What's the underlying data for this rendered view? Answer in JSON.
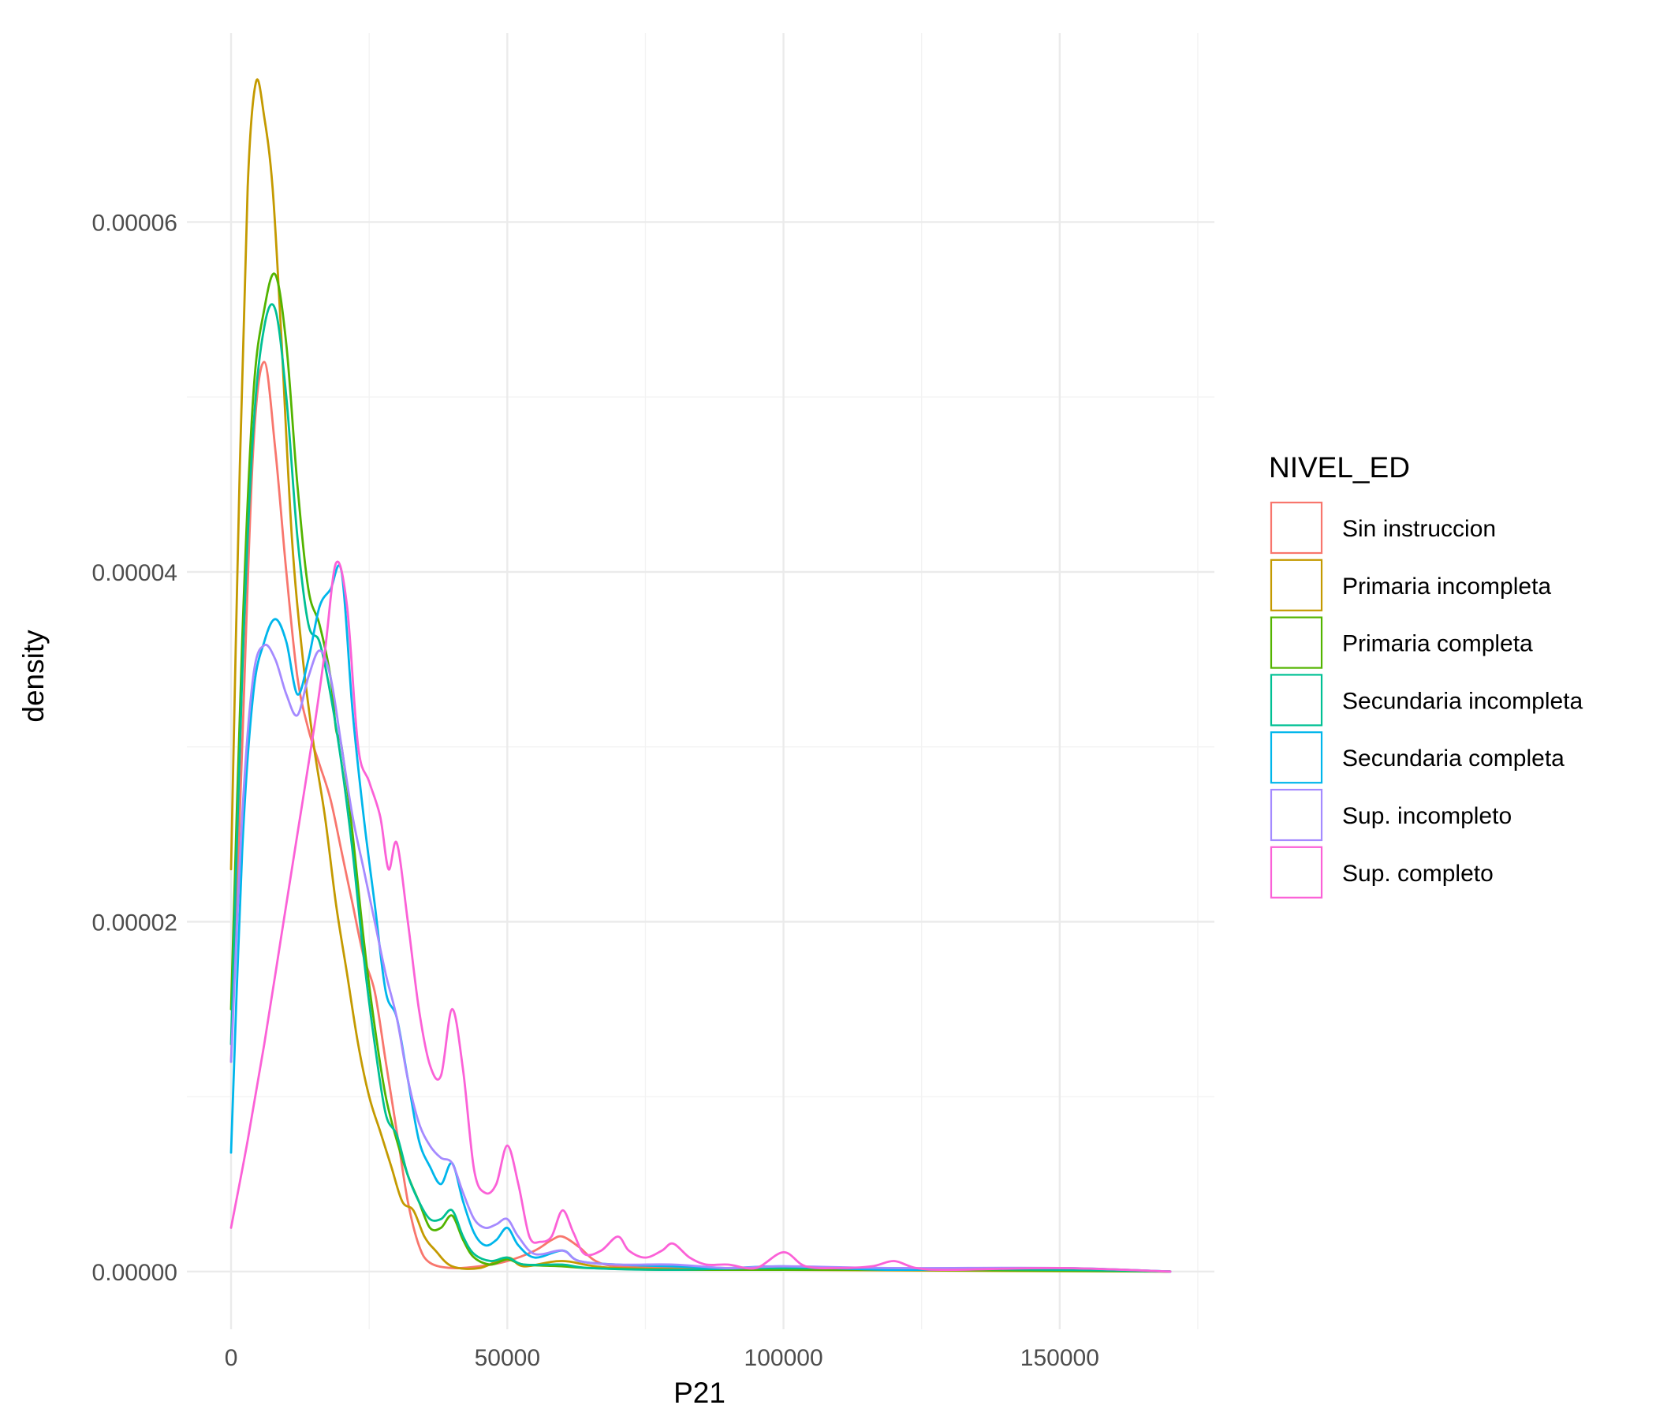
{
  "chart_data": {
    "type": "line",
    "subtype": "density",
    "xlabel": "P21",
    "ylabel": "density",
    "xlim": [
      -8000,
      178000
    ],
    "ylim": [
      -3.3e-06,
      7.08e-05
    ],
    "x_ticks": [
      0,
      50000,
      100000,
      150000
    ],
    "x_tick_labels": [
      "0",
      "50000",
      "100000",
      "150000"
    ],
    "x_minor_ticks": [
      25000,
      75000,
      125000,
      175000
    ],
    "y_ticks": [
      0,
      2e-05,
      4e-05,
      6e-05
    ],
    "y_tick_labels": [
      "0.00000",
      "0.00002",
      "0.00004",
      "0.00006"
    ],
    "y_minor_ticks": [
      1e-05,
      3e-05,
      5e-05
    ],
    "grid": true,
    "legend": {
      "title": "NIVEL_ED",
      "position": "right"
    },
    "series": [
      {
        "name": "Sin instruccion",
        "color": "#F8766D",
        "points": [
          [
            0,
            1.2e-05
          ],
          [
            2000,
            3e-05
          ],
          [
            4000,
            4.7e-05
          ],
          [
            6000,
            5.2e-05
          ],
          [
            8000,
            4.7e-05
          ],
          [
            10000,
            4e-05
          ],
          [
            12000,
            3.4e-05
          ],
          [
            14000,
            3.1e-05
          ],
          [
            16000,
            2.9e-05
          ],
          [
            18000,
            2.7e-05
          ],
          [
            20000,
            2.4e-05
          ],
          [
            22000,
            2.1e-05
          ],
          [
            24000,
            1.8e-05
          ],
          [
            26000,
            1.6e-05
          ],
          [
            28000,
            1.2e-05
          ],
          [
            30000,
            8e-06
          ],
          [
            32000,
            4e-06
          ],
          [
            34000,
            1.5e-06
          ],
          [
            36000,
            5e-07
          ],
          [
            40000,
            2e-07
          ],
          [
            45000,
            3e-07
          ],
          [
            50000,
            6e-07
          ],
          [
            55000,
            1.2e-06
          ],
          [
            58000,
            1.8e-06
          ],
          [
            60000,
            2e-06
          ],
          [
            63000,
            1.4e-06
          ],
          [
            66000,
            6e-07
          ],
          [
            70000,
            3e-07
          ],
          [
            80000,
            2e-07
          ],
          [
            100000,
            2e-07
          ],
          [
            120000,
            1e-07
          ],
          [
            150000,
            1e-07
          ],
          [
            170000,
            0.0
          ]
        ]
      },
      {
        "name": "Primaria incompleta",
        "color": "#C49A00",
        "points": [
          [
            0,
            2.3e-05
          ],
          [
            1500,
            4.5e-05
          ],
          [
            3000,
            6.2e-05
          ],
          [
            4500,
            6.8e-05
          ],
          [
            6000,
            6.6e-05
          ],
          [
            7500,
            6.2e-05
          ],
          [
            9000,
            5.4e-05
          ],
          [
            11000,
            4.2e-05
          ],
          [
            13000,
            3.5e-05
          ],
          [
            15000,
            3e-05
          ],
          [
            17000,
            2.6e-05
          ],
          [
            19000,
            2.1e-05
          ],
          [
            21000,
            1.7e-05
          ],
          [
            23000,
            1.3e-05
          ],
          [
            25000,
            1e-05
          ],
          [
            27000,
            8e-06
          ],
          [
            29000,
            6e-06
          ],
          [
            31000,
            4e-06
          ],
          [
            33000,
            3.5e-06
          ],
          [
            35000,
            2e-06
          ],
          [
            37000,
            1.2e-06
          ],
          [
            40000,
            3e-07
          ],
          [
            45000,
            2e-07
          ],
          [
            50000,
            8e-07
          ],
          [
            53000,
            3e-07
          ],
          [
            60000,
            6e-07
          ],
          [
            70000,
            2e-07
          ],
          [
            100000,
            1e-07
          ],
          [
            170000,
            0.0
          ]
        ]
      },
      {
        "name": "Primaria completa",
        "color": "#53B400",
        "points": [
          [
            0,
            1.5e-05
          ],
          [
            2000,
            3.6e-05
          ],
          [
            4000,
            5e-05
          ],
          [
            6000,
            5.5e-05
          ],
          [
            8000,
            5.7e-05
          ],
          [
            10000,
            5.3e-05
          ],
          [
            12000,
            4.5e-05
          ],
          [
            14000,
            3.9e-05
          ],
          [
            16000,
            3.7e-05
          ],
          [
            18000,
            3.4e-05
          ],
          [
            19000,
            3.1e-05
          ],
          [
            20000,
            3e-05
          ],
          [
            22000,
            2.5e-05
          ],
          [
            24000,
            1.9e-05
          ],
          [
            26000,
            1.4e-05
          ],
          [
            28000,
            1e-05
          ],
          [
            30000,
            7.5e-06
          ],
          [
            32000,
            5.5e-06
          ],
          [
            34000,
            4e-06
          ],
          [
            36000,
            2.5e-06
          ],
          [
            38000,
            2.5e-06
          ],
          [
            40000,
            3.2e-06
          ],
          [
            42000,
            1.8e-06
          ],
          [
            44000,
            8e-07
          ],
          [
            47000,
            4e-07
          ],
          [
            50000,
            7e-07
          ],
          [
            53000,
            4e-07
          ],
          [
            60000,
            3e-07
          ],
          [
            65000,
            2e-07
          ],
          [
            80000,
            1e-07
          ],
          [
            120000,
            1e-07
          ],
          [
            170000,
            0.0
          ]
        ]
      },
      {
        "name": "Secundaria incompleta",
        "color": "#00C094",
        "points": [
          [
            0,
            1.3e-05
          ],
          [
            2000,
            3.4e-05
          ],
          [
            4000,
            4.8e-05
          ],
          [
            6000,
            5.4e-05
          ],
          [
            8000,
            5.5e-05
          ],
          [
            10000,
            5e-05
          ],
          [
            12000,
            4.2e-05
          ],
          [
            14000,
            3.7e-05
          ],
          [
            16000,
            3.6e-05
          ],
          [
            18000,
            3.3e-05
          ],
          [
            20000,
            2.9e-05
          ],
          [
            22000,
            2.4e-05
          ],
          [
            24000,
            1.8e-05
          ],
          [
            26000,
            1.3e-05
          ],
          [
            28000,
            9e-06
          ],
          [
            30000,
            7.8e-06
          ],
          [
            32000,
            5.5e-06
          ],
          [
            34000,
            4e-06
          ],
          [
            36000,
            3e-06
          ],
          [
            38000,
            3e-06
          ],
          [
            40000,
            3.5e-06
          ],
          [
            42000,
            2e-06
          ],
          [
            44000,
            1e-06
          ],
          [
            47000,
            6e-07
          ],
          [
            50000,
            8e-07
          ],
          [
            53000,
            4e-07
          ],
          [
            60000,
            4e-07
          ],
          [
            65000,
            2e-07
          ],
          [
            80000,
            1e-07
          ],
          [
            100000,
            2e-07
          ],
          [
            150000,
            1e-07
          ],
          [
            170000,
            0.0
          ]
        ]
      },
      {
        "name": "Secundaria completa",
        "color": "#00B6EB",
        "points": [
          [
            0,
            6.8e-06
          ],
          [
            2000,
            2.4e-05
          ],
          [
            4000,
            3.3e-05
          ],
          [
            6000,
            3.6e-05
          ],
          [
            8000,
            3.73e-05
          ],
          [
            10000,
            3.6e-05
          ],
          [
            12000,
            3.3e-05
          ],
          [
            14000,
            3.5e-05
          ],
          [
            16000,
            3.8e-05
          ],
          [
            18000,
            3.9e-05
          ],
          [
            20000,
            4e-05
          ],
          [
            22000,
            3.2e-05
          ],
          [
            24000,
            2.6e-05
          ],
          [
            26000,
            2.1e-05
          ],
          [
            28000,
            1.6e-05
          ],
          [
            30000,
            1.45e-05
          ],
          [
            32000,
            1.1e-05
          ],
          [
            34000,
            7.5e-06
          ],
          [
            36000,
            6e-06
          ],
          [
            38000,
            5e-06
          ],
          [
            40000,
            6.2e-06
          ],
          [
            42000,
            4e-06
          ],
          [
            44000,
            2.2e-06
          ],
          [
            46000,
            1.5e-06
          ],
          [
            48000,
            1.8e-06
          ],
          [
            50000,
            2.5e-06
          ],
          [
            52000,
            1.5e-06
          ],
          [
            55000,
            8e-07
          ],
          [
            60000,
            1.2e-06
          ],
          [
            63000,
            6e-07
          ],
          [
            70000,
            4e-07
          ],
          [
            80000,
            3e-07
          ],
          [
            90000,
            2e-07
          ],
          [
            100000,
            3e-07
          ],
          [
            120000,
            1e-07
          ],
          [
            150000,
            2e-07
          ],
          [
            170000,
            0.0
          ]
        ]
      },
      {
        "name": "Sup. incompleto",
        "color": "#A58AFF",
        "points": [
          [
            0,
            1.2e-05
          ],
          [
            2000,
            2.6e-05
          ],
          [
            4000,
            3.4e-05
          ],
          [
            6000,
            3.58e-05
          ],
          [
            8000,
            3.5e-05
          ],
          [
            10000,
            3.3e-05
          ],
          [
            12000,
            3.18e-05
          ],
          [
            14000,
            3.4e-05
          ],
          [
            16000,
            3.55e-05
          ],
          [
            18000,
            3.4e-05
          ],
          [
            20000,
            3e-05
          ],
          [
            22000,
            2.6e-05
          ],
          [
            24000,
            2.3e-05
          ],
          [
            26000,
            2e-05
          ],
          [
            28000,
            1.7e-05
          ],
          [
            30000,
            1.45e-05
          ],
          [
            32000,
            1.1e-05
          ],
          [
            34000,
            8.5e-06
          ],
          [
            36000,
            7.2e-06
          ],
          [
            38000,
            6.5e-06
          ],
          [
            40000,
            6.2e-06
          ],
          [
            42000,
            4.5e-06
          ],
          [
            44000,
            3e-06
          ],
          [
            46000,
            2.5e-06
          ],
          [
            48000,
            2.7e-06
          ],
          [
            50000,
            3e-06
          ],
          [
            52000,
            2e-06
          ],
          [
            55000,
            1e-06
          ],
          [
            60000,
            1.2e-06
          ],
          [
            63000,
            6e-07
          ],
          [
            70000,
            4e-07
          ],
          [
            80000,
            4e-07
          ],
          [
            90000,
            2e-07
          ],
          [
            100000,
            3e-07
          ],
          [
            120000,
            2e-07
          ],
          [
            150000,
            2e-07
          ],
          [
            170000,
            0.0
          ]
        ]
      },
      {
        "name": "Sup. completo",
        "color": "#FB61D7",
        "points": [
          [
            0,
            2.5e-06
          ],
          [
            3000,
            7.5e-06
          ],
          [
            6000,
            1.3e-05
          ],
          [
            9000,
            1.9e-05
          ],
          [
            12000,
            2.5e-05
          ],
          [
            15000,
            3.1e-05
          ],
          [
            17000,
            3.55e-05
          ],
          [
            19000,
            4.05e-05
          ],
          [
            21000,
            3.8e-05
          ],
          [
            23000,
            3e-05
          ],
          [
            25000,
            2.8e-05
          ],
          [
            27000,
            2.6e-05
          ],
          [
            28500,
            2.3e-05
          ],
          [
            30000,
            2.45e-05
          ],
          [
            32000,
            2e-05
          ],
          [
            34000,
            1.5e-05
          ],
          [
            36000,
            1.18e-05
          ],
          [
            38000,
            1.12e-05
          ],
          [
            40000,
            1.5e-05
          ],
          [
            42000,
            1.15e-05
          ],
          [
            44000,
            5.8e-06
          ],
          [
            46000,
            4.5e-06
          ],
          [
            48000,
            5e-06
          ],
          [
            50000,
            7.2e-06
          ],
          [
            52000,
            5e-06
          ],
          [
            54000,
            2e-06
          ],
          [
            56000,
            1.7e-06
          ],
          [
            58000,
            2e-06
          ],
          [
            60000,
            3.5e-06
          ],
          [
            62000,
            2.2e-06
          ],
          [
            64000,
            1e-06
          ],
          [
            67000,
            1.2e-06
          ],
          [
            70000,
            2e-06
          ],
          [
            72000,
            1.2e-06
          ],
          [
            75000,
            8e-07
          ],
          [
            78000,
            1.2e-06
          ],
          [
            80000,
            1.6e-06
          ],
          [
            83000,
            8e-07
          ],
          [
            86000,
            4e-07
          ],
          [
            90000,
            4e-07
          ],
          [
            95000,
            2e-07
          ],
          [
            100000,
            1.1e-06
          ],
          [
            104000,
            3e-07
          ],
          [
            110000,
            2e-07
          ],
          [
            116000,
            3e-07
          ],
          [
            120000,
            6e-07
          ],
          [
            124000,
            2e-07
          ],
          [
            130000,
            1e-07
          ],
          [
            150000,
            2e-07
          ],
          [
            170000,
            0.0
          ]
        ]
      }
    ]
  }
}
